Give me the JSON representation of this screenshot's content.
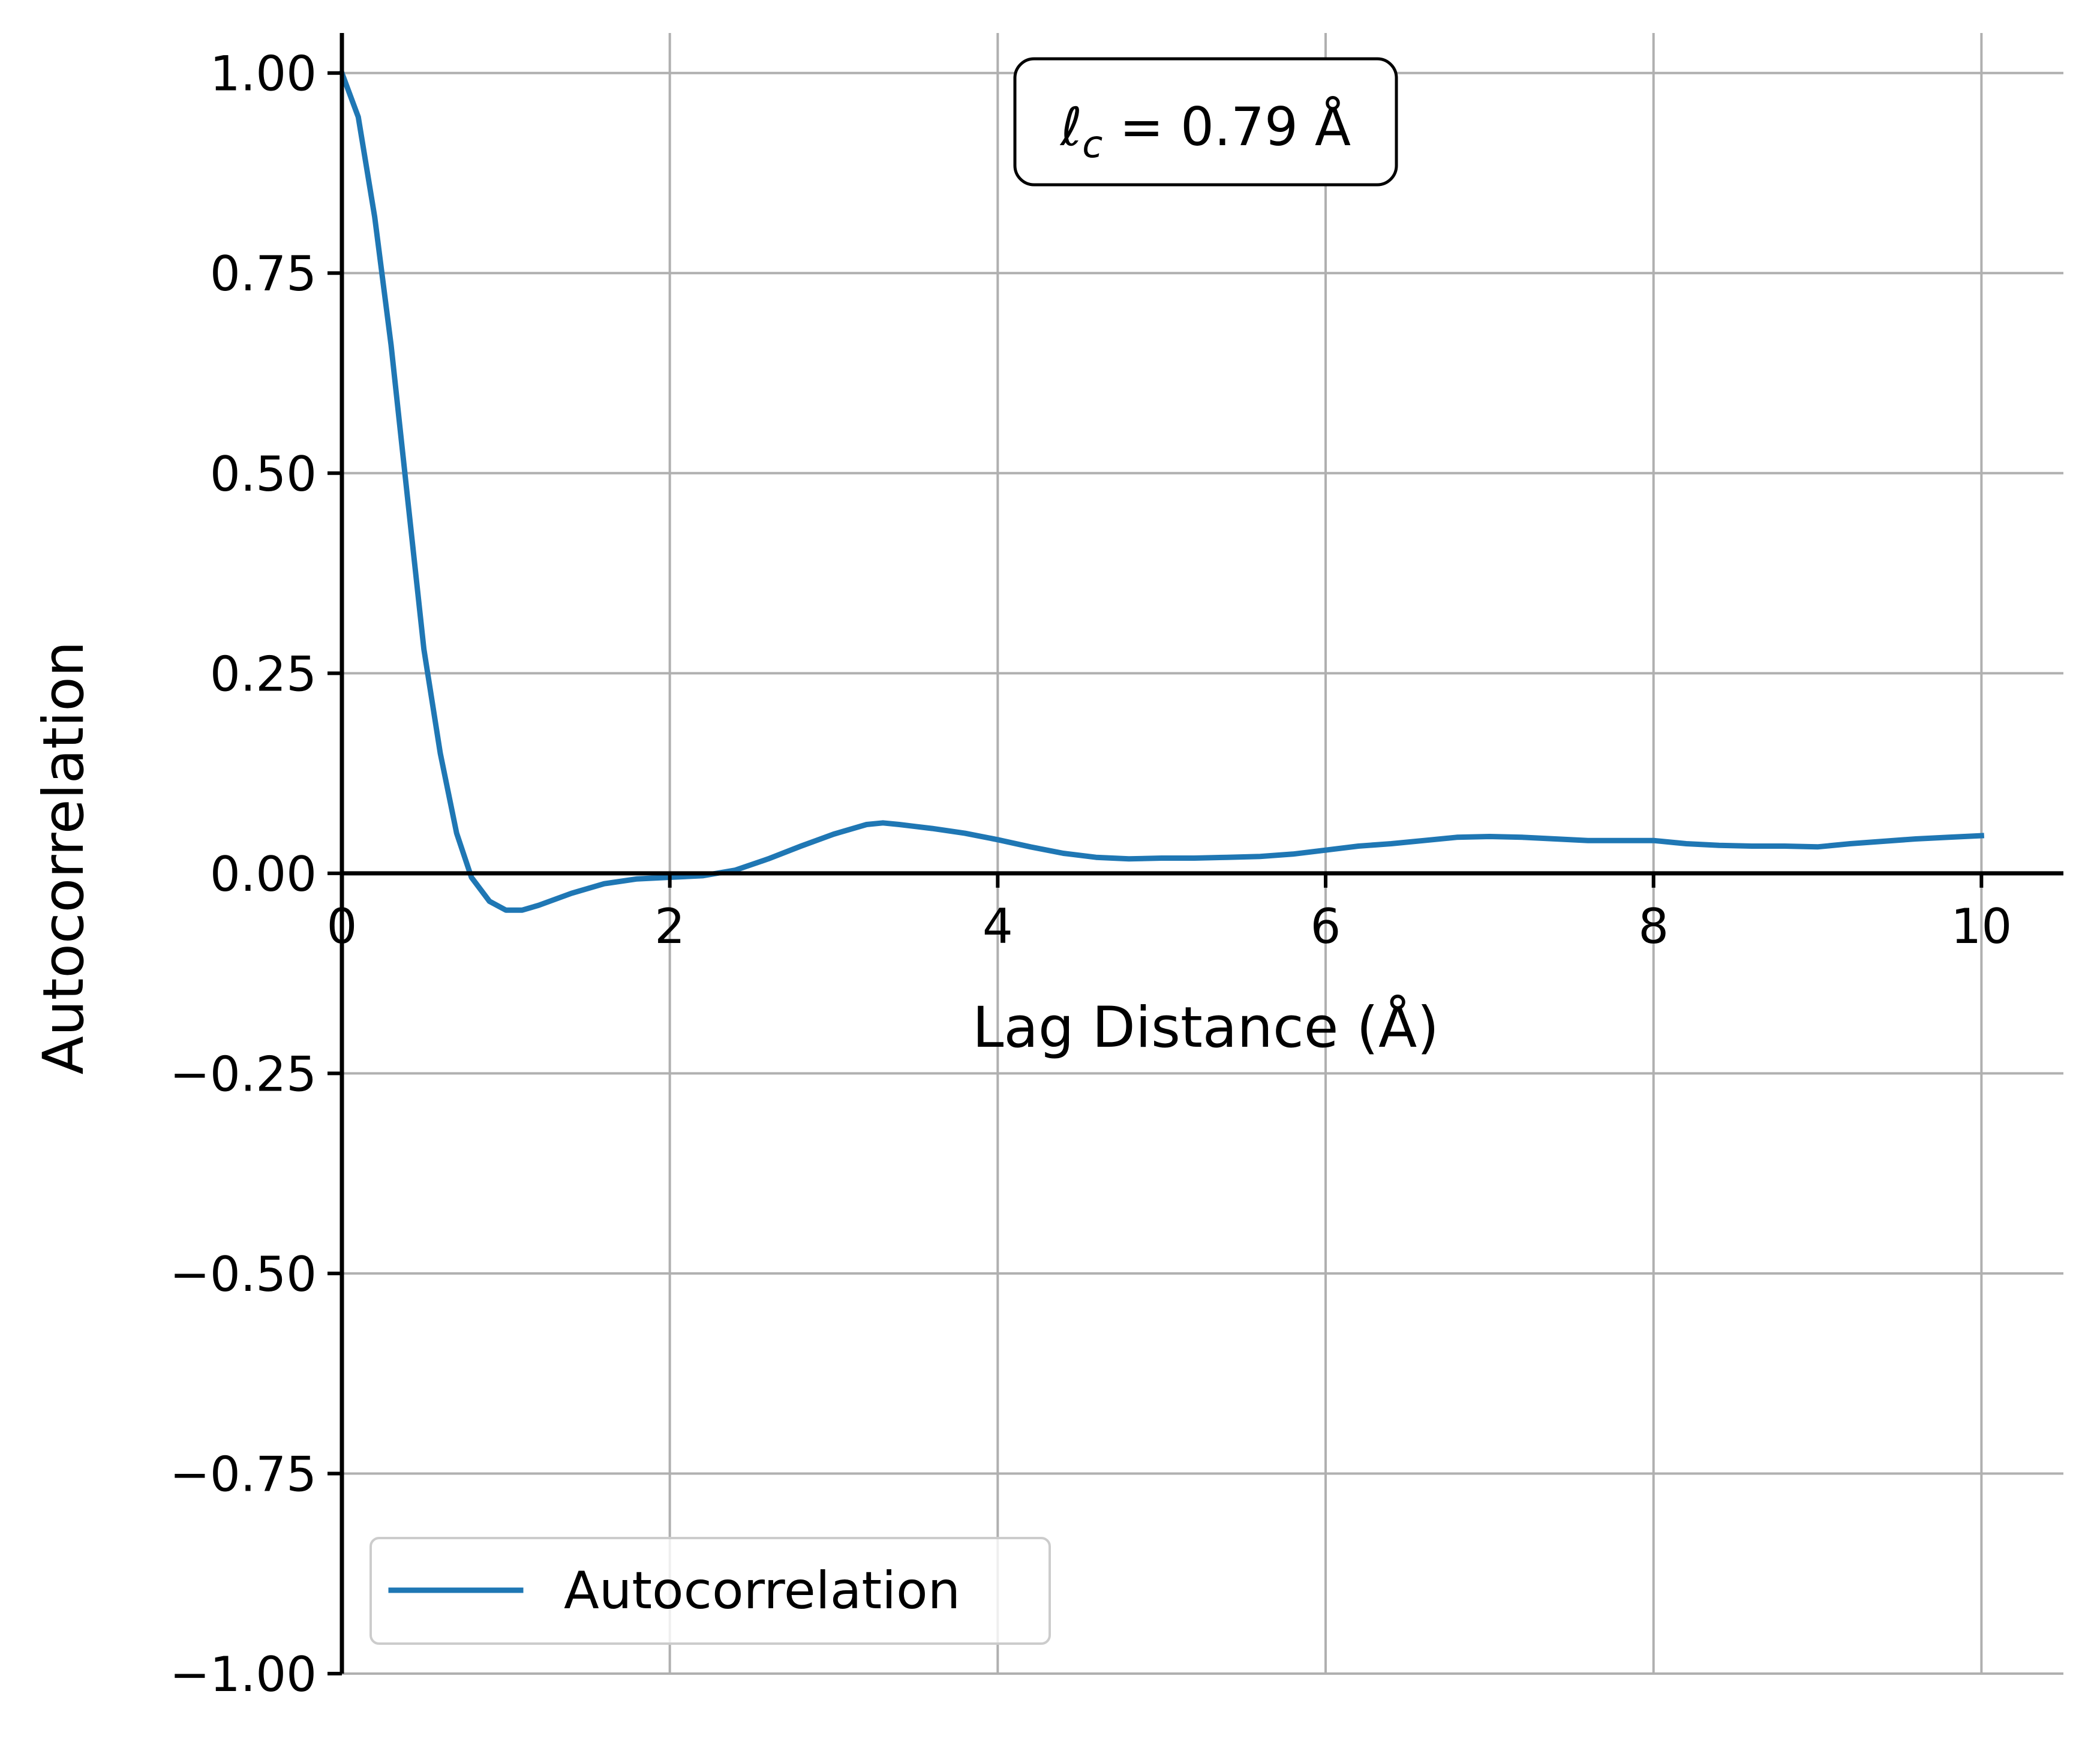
{
  "chart_data": {
    "type": "line",
    "title": "",
    "xlabel": "Lag Distance (Å)",
    "ylabel": "Autocorrelation",
    "xlim": [
      0,
      10.5
    ],
    "ylim": [
      -1.0,
      1.05
    ],
    "xticks": [
      0,
      2,
      4,
      6,
      8,
      10
    ],
    "xtick_labels": [
      "0",
      "2",
      "4",
      "6",
      "8",
      "10"
    ],
    "yticks": [
      1.0,
      0.75,
      0.5,
      0.25,
      0.0,
      -0.25,
      -0.5,
      -0.75,
      -1.0
    ],
    "ytick_labels": [
      "1.00",
      "0.75",
      "0.50",
      "0.25",
      "0.00",
      "−0.25",
      "−0.50",
      "−0.75",
      "−1.00"
    ],
    "grid": true,
    "legend_position": "lower-left",
    "annotation": {
      "prefix": "ℓ",
      "subscript": "c",
      "text": " = 0.79 Å"
    },
    "series": [
      {
        "name": "Autocorrelation",
        "color": "#1f77b4",
        "x": [
          0,
          0.1,
          0.2,
          0.3,
          0.4,
          0.5,
          0.6,
          0.7,
          0.79,
          0.9,
          1.0,
          1.1,
          1.2,
          1.4,
          1.6,
          1.8,
          2.0,
          2.2,
          2.4,
          2.6,
          2.8,
          3.0,
          3.2,
          3.3,
          3.4,
          3.6,
          3.8,
          4.0,
          4.2,
          4.4,
          4.6,
          4.8,
          5.0,
          5.2,
          5.4,
          5.6,
          5.8,
          6.0,
          6.2,
          6.4,
          6.6,
          6.8,
          7.0,
          7.2,
          7.4,
          7.6,
          7.8,
          8.0,
          8.2,
          8.4,
          8.6,
          8.8,
          9.0,
          9.2,
          9.4,
          9.6,
          9.8,
          10.0
        ],
        "y": [
          1.0,
          0.945,
          0.82,
          0.66,
          0.47,
          0.28,
          0.15,
          0.05,
          -0.005,
          -0.035,
          -0.046,
          -0.046,
          -0.04,
          -0.025,
          -0.013,
          -0.007,
          -0.005,
          -0.003,
          0.004,
          0.018,
          0.034,
          0.049,
          0.061,
          0.063,
          0.061,
          0.056,
          0.05,
          0.042,
          0.033,
          0.025,
          0.02,
          0.018,
          0.019,
          0.019,
          0.02,
          0.021,
          0.024,
          0.029,
          0.034,
          0.037,
          0.041,
          0.045,
          0.046,
          0.045,
          0.043,
          0.041,
          0.041,
          0.041,
          0.037,
          0.035,
          0.034,
          0.034,
          0.033,
          0.037,
          0.04,
          0.043,
          0.045,
          0.047
        ]
      }
    ]
  }
}
